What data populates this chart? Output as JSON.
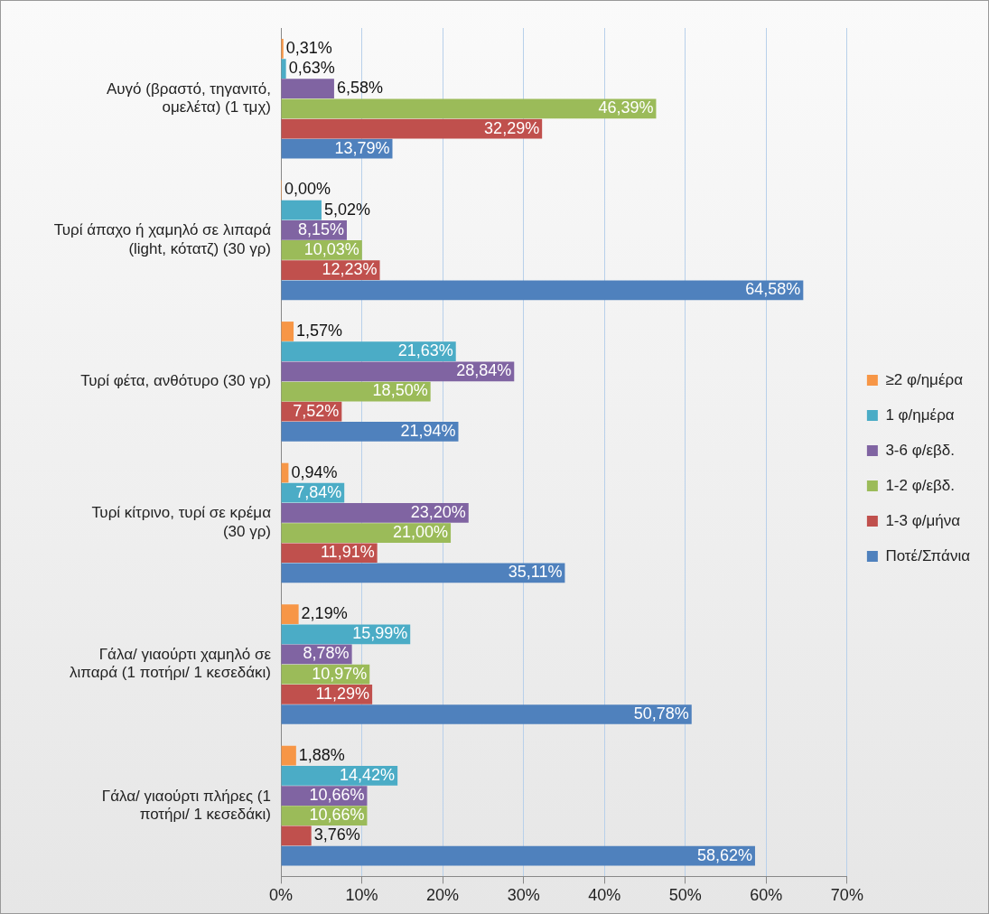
{
  "chart_data": {
    "type": "bar",
    "orientation": "horizontal",
    "categories": [
      "Αυγό (βραστό, τηγανιτό, ομελέτα) (1 τμχ)",
      "Τυρί άπαχο ή χαμηλό σε λιπαρά (light, κότατζ) (30 γρ)",
      "Τυρί φέτα, ανθότυρο (30 γρ)",
      "Τυρί κίτρινο, τυρί σε κρέμα (30 γρ)",
      "Γάλα/ γιαούρτι χαμηλό σε λιπαρά (1 ποτήρι/ 1 κεσεδάκι)",
      "Γάλα/ γιαούρτι πλήρες (1 ποτήρι/ 1 κεσεδάκι)"
    ],
    "series": [
      {
        "name": "≥2 φ/ημέρα",
        "color": "#f79646",
        "values": [
          0.31,
          0.0,
          1.57,
          0.94,
          2.19,
          1.88
        ],
        "value_labels": [
          "0,31%",
          "0,00%",
          "1,57%",
          "0,94%",
          "2,19%",
          "1,88%"
        ]
      },
      {
        "name": "1 φ/ημέρα",
        "color": "#4bacc6",
        "values": [
          0.63,
          5.02,
          21.63,
          7.84,
          15.99,
          14.42
        ],
        "value_labels": [
          "0,63%",
          "5,02%",
          "21,63%",
          "7,84%",
          "15,99%",
          "14,42%"
        ]
      },
      {
        "name": "3-6 φ/εβδ.",
        "color": "#8064a2",
        "values": [
          6.58,
          8.15,
          28.84,
          23.2,
          8.78,
          10.66
        ],
        "value_labels": [
          "6,58%",
          "8,15%",
          "28,84%",
          "23,20%",
          "8,78%",
          "10,66%"
        ]
      },
      {
        "name": "1-2 φ/εβδ.",
        "color": "#9bbb59",
        "values": [
          46.39,
          10.03,
          18.5,
          21.0,
          10.97,
          10.66
        ],
        "value_labels": [
          "46,39%",
          "10,03%",
          "18,50%",
          "21,00%",
          "10,97%",
          "10,66%"
        ]
      },
      {
        "name": "1-3 φ/μήνα",
        "color": "#c0504d",
        "values": [
          32.29,
          12.23,
          7.52,
          11.91,
          11.29,
          3.76
        ],
        "value_labels": [
          "32,29%",
          "12,23%",
          "7,52%",
          "11,91%",
          "11,29%",
          "3,76%"
        ]
      },
      {
        "name": "Ποτέ/Σπάνια",
        "color": "#4f81bd",
        "values": [
          13.79,
          64.58,
          21.94,
          35.11,
          50.78,
          58.62
        ],
        "value_labels": [
          "13,79%",
          "64,58%",
          "21,94%",
          "35,11%",
          "50,78%",
          "58,62%"
        ]
      }
    ],
    "xlim": [
      0,
      70
    ],
    "xticks": [
      {
        "value": 0,
        "label": "0%"
      },
      {
        "value": 10,
        "label": "10%"
      },
      {
        "value": 20,
        "label": "20%"
      },
      {
        "value": 30,
        "label": "30%"
      },
      {
        "value": 40,
        "label": "40%"
      },
      {
        "value": 50,
        "label": "50%"
      },
      {
        "value": 60,
        "label": "60%"
      },
      {
        "value": 70,
        "label": "70%"
      }
    ],
    "grid": "x",
    "legend": "right"
  }
}
